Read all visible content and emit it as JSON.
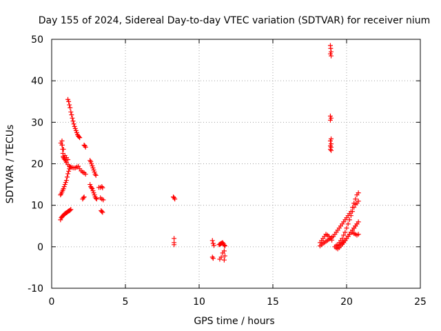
{
  "chart_data": {
    "type": "scatter",
    "title": "Day 155 of 2024, Sidereal Day-to-day VTEC variation (SDTVAR) for receiver nium",
    "xlabel": "GPS time / hours",
    "ylabel": "SDTVAR / TECUs",
    "xlim": [
      0,
      25
    ],
    "ylim": [
      -10,
      50
    ],
    "xticks": [
      0,
      5,
      10,
      15,
      20,
      25
    ],
    "yticks": [
      -10,
      0,
      10,
      20,
      30,
      40,
      50
    ],
    "grid": true,
    "marker": "+",
    "color": "#ff0000",
    "series": [
      {
        "name": "SDTVAR",
        "x": [
          0.6,
          0.65,
          0.7,
          0.75,
          0.8,
          0.85,
          0.9,
          0.95,
          1.0,
          1.05,
          1.1,
          1.15,
          1.2,
          1.25,
          1.3,
          0.7,
          0.72,
          0.74,
          0.76,
          0.78,
          0.8,
          0.85,
          0.9,
          0.95,
          1.0,
          1.1,
          1.2,
          1.3,
          1.4,
          1.5,
          1.6,
          1.7,
          1.8,
          1.9,
          2.0,
          2.1,
          2.2,
          2.3,
          1.1,
          1.15,
          1.2,
          1.25,
          1.3,
          1.35,
          1.4,
          1.45,
          1.5,
          1.55,
          1.6,
          1.65,
          1.7,
          1.75,
          1.8,
          1.85,
          1.9,
          0.6,
          0.65,
          0.7,
          0.75,
          0.8,
          0.85,
          0.9,
          0.95,
          1.0,
          1.05,
          1.1,
          1.15,
          1.2,
          1.25,
          0.62,
          0.7,
          0.8,
          0.9,
          1.0,
          1.1,
          2.2,
          2.25,
          2.3,
          2.1,
          2.15,
          2.2,
          2.6,
          2.65,
          2.7,
          2.75,
          2.8,
          2.85,
          2.9,
          2.95,
          3.0,
          2.6,
          2.65,
          2.7,
          2.75,
          2.8,
          2.85,
          2.9,
          2.95,
          3.0,
          3.05,
          3.2,
          3.3,
          3.4,
          3.45,
          3.3,
          3.4,
          3.5,
          3.35,
          3.4,
          3.45,
          8.25,
          8.3,
          8.35,
          8.3,
          8.3,
          8.3,
          10.9,
          10.95,
          11.0,
          10.9,
          10.95,
          11.35,
          11.4,
          11.45,
          11.5,
          11.55,
          11.6,
          11.65,
          11.7,
          11.75,
          11.4,
          11.5,
          11.6,
          11.7,
          11.75,
          11.7,
          18.9,
          18.92,
          18.95,
          18.9,
          18.95,
          18.9,
          18.95,
          18.9,
          18.95,
          18.9,
          18.95,
          18.9,
          18.95,
          18.9,
          18.95,
          18.2,
          18.3,
          18.4,
          18.5,
          18.6,
          18.7,
          18.8,
          18.9,
          19.0,
          18.2,
          18.3,
          18.4,
          18.5,
          18.6,
          18.7,
          18.8,
          18.9,
          19.0,
          19.1,
          19.2,
          19.3,
          19.4,
          19.5,
          19.6,
          19.7,
          19.8,
          19.9,
          20.0,
          20.1,
          20.2,
          20.3,
          20.4,
          20.5,
          20.6,
          20.7,
          20.8,
          19.2,
          19.3,
          19.4,
          19.5,
          19.6,
          19.7,
          19.8,
          19.9,
          20.0,
          20.1,
          20.2,
          20.3,
          20.4,
          20.5,
          20.6,
          20.7,
          20.8,
          19.3,
          19.4,
          19.5,
          19.6,
          19.7,
          19.8,
          19.9,
          20.0,
          20.1,
          20.2,
          20.3,
          20.4,
          20.5,
          20.6,
          20.7,
          20.8,
          19.5,
          19.6,
          19.7,
          19.8,
          19.9,
          20.0,
          20.1,
          20.2,
          20.3,
          20.4,
          20.5,
          20.6,
          20.7,
          20.4,
          20.5,
          20.6,
          20.7,
          20.8
        ],
        "y": [
          6.5,
          7.0,
          7.2,
          7.4,
          7.6,
          7.8,
          8.0,
          8.1,
          8.2,
          8.3,
          8.5,
          8.6,
          8.7,
          8.8,
          9.0,
          25.5,
          24.5,
          23.5,
          22.5,
          21.8,
          21.5,
          21.2,
          21.0,
          20.7,
          20.3,
          19.8,
          19.4,
          19.2,
          19.1,
          19.0,
          19.0,
          19.2,
          19.4,
          18.8,
          18.3,
          18.0,
          17.8,
          17.5,
          35.5,
          35.0,
          34.2,
          33.5,
          32.5,
          31.8,
          31.0,
          30.3,
          29.6,
          29.0,
          28.5,
          28.0,
          27.5,
          27.0,
          26.7,
          26.5,
          26.3,
          12.5,
          12.8,
          13.2,
          13.6,
          14.0,
          14.5,
          15.0,
          15.5,
          16.0,
          16.8,
          17.6,
          18.2,
          18.8,
          19.2,
          25.0,
          24.5,
          23.5,
          22.0,
          21.5,
          21.0,
          24.5,
          24.3,
          24.0,
          11.5,
          11.8,
          12.0,
          20.8,
          20.5,
          20.0,
          19.5,
          19.0,
          18.5,
          18.0,
          17.5,
          17.2,
          15.0,
          14.5,
          14.2,
          14.0,
          13.5,
          13.0,
          12.5,
          12.0,
          11.7,
          11.5,
          14.3,
          14.3,
          14.5,
          14.2,
          11.8,
          11.5,
          11.3,
          8.7,
          8.5,
          8.3,
          12.0,
          11.8,
          11.5,
          2.0,
          1.0,
          0.5,
          1.5,
          0.8,
          0.3,
          -2.5,
          -2.8,
          0.5,
          0.6,
          0.7,
          0.8,
          0.9,
          1.0,
          0.7,
          0.4,
          0.2,
          -3.0,
          -2.5,
          -1.5,
          -1.0,
          -2.2,
          -3.2,
          48.5,
          47.8,
          47.0,
          46.5,
          46.0,
          31.5,
          31.0,
          30.5,
          26.0,
          25.5,
          24.8,
          24.3,
          24.0,
          23.5,
          23.2,
          1.0,
          1.5,
          2.0,
          2.5,
          3.0,
          2.8,
          2.5,
          2.0,
          1.6,
          0.2,
          0.5,
          0.8,
          1.0,
          1.3,
          1.5,
          1.8,
          2.0,
          2.3,
          2.5,
          3.0,
          3.5,
          4.0,
          4.5,
          5.0,
          5.5,
          6.0,
          6.5,
          7.0,
          7.5,
          8.0,
          8.5,
          9.5,
          10.5,
          11.5,
          12.5,
          13.0,
          0.0,
          0.3,
          0.5,
          1.0,
          1.5,
          2.0,
          2.8,
          3.5,
          4.5,
          5.5,
          6.5,
          7.5,
          8.5,
          9.5,
          10.2,
          10.5,
          11.0,
          -0.3,
          -0.5,
          -0.2,
          0.2,
          0.6,
          1.0,
          1.5,
          2.0,
          2.5,
          3.0,
          3.5,
          4.0,
          4.5,
          5.0,
          5.5,
          6.0,
          0.2,
          0.5,
          0.8,
          1.2,
          1.6,
          2.0,
          2.5,
          3.0,
          3.5,
          4.0,
          4.5,
          5.0,
          5.5,
          3.5,
          3.2,
          3.0,
          2.8,
          3.0
        ]
      }
    ]
  }
}
